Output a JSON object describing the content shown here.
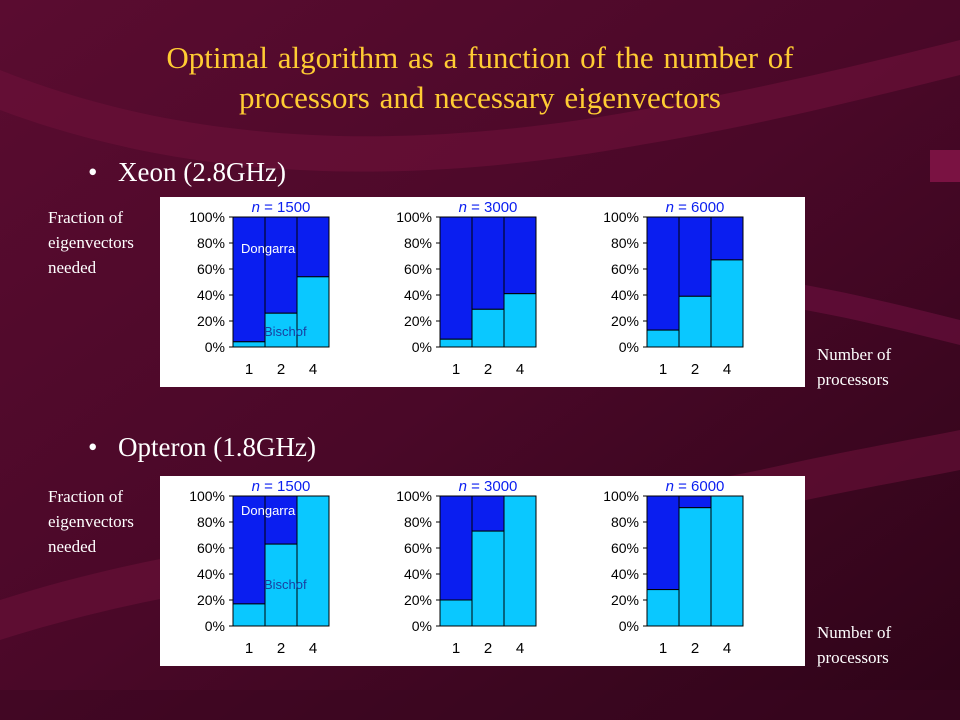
{
  "slide": {
    "title_line1": "Optimal algorithm as a function of the number of",
    "title_line2": "processors and necessary eigenvectors",
    "bullet_xeon": "Xeon (2.8GHz)",
    "bullet_opteron": "Opteron (1.8GHz)",
    "ylabel": [
      "Fraction of",
      "eigenvectors",
      "needed"
    ],
    "xlabel": [
      "Number of",
      "processors"
    ],
    "colors": {
      "dongarra": "#0a1ef0",
      "bischof": "#0ac8ff",
      "title": "#ffcc33",
      "background": "#4a0a28"
    }
  },
  "chart_data": [
    {
      "type": "bar",
      "group": "Xeon (2.8GHz)",
      "n_prefix": "n",
      "n_value": " = 1500",
      "categories": [
        "1",
        "2",
        "4"
      ],
      "yticks": [
        "0%",
        "20%",
        "40%",
        "60%",
        "80%",
        "100%"
      ],
      "ylim": [
        0,
        100
      ],
      "series": [
        {
          "name": "Bischof",
          "values": [
            4,
            26,
            54
          ]
        },
        {
          "name": "Dongarra",
          "values": [
            96,
            74,
            46
          ]
        }
      ],
      "annotations": {
        "dongarra": "Dongarra",
        "bischof": "Bischof"
      }
    },
    {
      "type": "bar",
      "group": "Xeon (2.8GHz)",
      "n_prefix": "n",
      "n_value": " = 3000",
      "categories": [
        "1",
        "2",
        "4"
      ],
      "yticks": [
        "0%",
        "20%",
        "40%",
        "60%",
        "80%",
        "100%"
      ],
      "ylim": [
        0,
        100
      ],
      "series": [
        {
          "name": "Bischof",
          "values": [
            6,
            29,
            41
          ]
        },
        {
          "name": "Dongarra",
          "values": [
            94,
            71,
            59
          ]
        }
      ]
    },
    {
      "type": "bar",
      "group": "Xeon (2.8GHz)",
      "n_prefix": "n",
      "n_value": " = 6000",
      "categories": [
        "1",
        "2",
        "4"
      ],
      "yticks": [
        "0%",
        "20%",
        "40%",
        "60%",
        "80%",
        "100%"
      ],
      "ylim": [
        0,
        100
      ],
      "series": [
        {
          "name": "Bischof",
          "values": [
            13,
            39,
            67
          ]
        },
        {
          "name": "Dongarra",
          "values": [
            87,
            61,
            33
          ]
        }
      ]
    },
    {
      "type": "bar",
      "group": "Opteron (1.8GHz)",
      "n_prefix": "n",
      "n_value": " = 1500",
      "categories": [
        "1",
        "2",
        "4"
      ],
      "yticks": [
        "0%",
        "20%",
        "40%",
        "60%",
        "80%",
        "100%"
      ],
      "ylim": [
        0,
        100
      ],
      "series": [
        {
          "name": "Bischof",
          "values": [
            17,
            63,
            100
          ]
        },
        {
          "name": "Dongarra",
          "values": [
            83,
            37,
            0
          ]
        }
      ],
      "annotations": {
        "dongarra": "Dongarra",
        "bischof": "Bischof"
      }
    },
    {
      "type": "bar",
      "group": "Opteron (1.8GHz)",
      "n_prefix": "n",
      "n_value": " = 3000",
      "categories": [
        "1",
        "2",
        "4"
      ],
      "yticks": [
        "0%",
        "20%",
        "40%",
        "60%",
        "80%",
        "100%"
      ],
      "ylim": [
        0,
        100
      ],
      "series": [
        {
          "name": "Bischof",
          "values": [
            20,
            73,
            100
          ]
        },
        {
          "name": "Dongarra",
          "values": [
            80,
            27,
            0
          ]
        }
      ]
    },
    {
      "type": "bar",
      "group": "Opteron (1.8GHz)",
      "n_prefix": "n",
      "n_value": " = 6000",
      "categories": [
        "1",
        "2",
        "4"
      ],
      "yticks": [
        "0%",
        "20%",
        "40%",
        "60%",
        "80%",
        "100%"
      ],
      "ylim": [
        0,
        100
      ],
      "series": [
        {
          "name": "Bischof",
          "values": [
            28,
            91,
            100
          ]
        },
        {
          "name": "Dongarra",
          "values": [
            72,
            9,
            0
          ]
        }
      ]
    }
  ]
}
